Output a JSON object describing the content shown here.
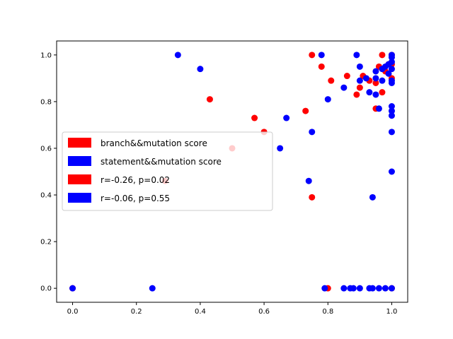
{
  "chart_data": {
    "type": "scatter",
    "title": "",
    "xlabel": "",
    "ylabel": "",
    "xlim": [
      -0.05,
      1.05
    ],
    "ylim": [
      -0.06,
      1.06
    ],
    "xticks": [
      0.0,
      0.2,
      0.4,
      0.6,
      0.8,
      1.0
    ],
    "yticks": [
      0.0,
      0.2,
      0.4,
      0.6,
      0.8,
      1.0
    ],
    "tick_labels_x": [
      "0.0",
      "0.2",
      "0.4",
      "0.6",
      "0.8",
      "1.0"
    ],
    "tick_labels_y": [
      "0.0",
      "0.2",
      "0.4",
      "0.6",
      "0.8",
      "1.0"
    ],
    "grid": false,
    "legend_position": "center-left",
    "legend": [
      {
        "label": "branch&&mutation score",
        "color": "#ff0000"
      },
      {
        "label": "statement&&mutation score",
        "color": "#0000ff"
      },
      {
        "label": "r=-0.26, p=0.02",
        "color": "#ff0000"
      },
      {
        "label": "r=-0.06, p=0.55",
        "color": "#0000ff"
      }
    ],
    "series": [
      {
        "color": "#ff0000",
        "points": [
          [
            0.0,
            0.0
          ],
          [
            0.29,
            0.46
          ],
          [
            0.43,
            0.81
          ],
          [
            0.5,
            0.6
          ],
          [
            0.57,
            0.73
          ],
          [
            0.6,
            0.67
          ],
          [
            0.73,
            0.76
          ],
          [
            0.75,
            1.0
          ],
          [
            0.75,
            0.39
          ],
          [
            0.78,
            0.95
          ],
          [
            0.8,
            0.0
          ],
          [
            0.81,
            0.89
          ],
          [
            0.86,
            0.91
          ],
          [
            0.89,
            0.83
          ],
          [
            0.9,
            0.86
          ],
          [
            0.91,
            0.91
          ],
          [
            0.93,
            0.89
          ],
          [
            0.95,
            0.77
          ],
          [
            0.95,
            0.88
          ],
          [
            0.96,
            0.95
          ],
          [
            0.97,
            0.84
          ],
          [
            0.97,
            1.0
          ],
          [
            0.98,
            0.93
          ],
          [
            0.99,
            0.96
          ],
          [
            1.0,
            0.96
          ],
          [
            1.0,
            1.0
          ],
          [
            1.0,
            0.9
          ],
          [
            1.0,
            0.0
          ]
        ]
      },
      {
        "color": "#0000ff",
        "points": [
          [
            0.0,
            0.0
          ],
          [
            0.25,
            0.0
          ],
          [
            0.33,
            1.0
          ],
          [
            0.4,
            0.94
          ],
          [
            0.65,
            0.6
          ],
          [
            0.67,
            0.73
          ],
          [
            0.74,
            0.46
          ],
          [
            0.75,
            0.67
          ],
          [
            0.78,
            1.0
          ],
          [
            0.79,
            0.0
          ],
          [
            0.8,
            0.81
          ],
          [
            0.85,
            0.86
          ],
          [
            0.85,
            0.0
          ],
          [
            0.87,
            0.0
          ],
          [
            0.88,
            0.0
          ],
          [
            0.89,
            1.0
          ],
          [
            0.9,
            0.0
          ],
          [
            0.9,
            0.95
          ],
          [
            0.9,
            0.89
          ],
          [
            0.92,
            0.9
          ],
          [
            0.93,
            0.0
          ],
          [
            0.93,
            0.84
          ],
          [
            0.94,
            0.39
          ],
          [
            0.94,
            0.0
          ],
          [
            0.95,
            0.83
          ],
          [
            0.95,
            0.93
          ],
          [
            0.95,
            0.9
          ],
          [
            0.96,
            0.77
          ],
          [
            0.96,
            0.0
          ],
          [
            0.97,
            0.94
          ],
          [
            0.97,
            0.89
          ],
          [
            0.98,
            0.95
          ],
          [
            0.98,
            0.0
          ],
          [
            0.99,
            0.96
          ],
          [
            0.99,
            0.92
          ],
          [
            1.0,
            1.0
          ],
          [
            1.0,
            0.99
          ],
          [
            1.0,
            0.97
          ],
          [
            1.0,
            0.94
          ],
          [
            1.0,
            0.89
          ],
          [
            1.0,
            0.88
          ],
          [
            1.0,
            0.78
          ],
          [
            1.0,
            0.76
          ],
          [
            1.0,
            0.74
          ],
          [
            1.0,
            0.67
          ],
          [
            1.0,
            0.5
          ],
          [
            1.0,
            0.0
          ]
        ]
      }
    ]
  }
}
